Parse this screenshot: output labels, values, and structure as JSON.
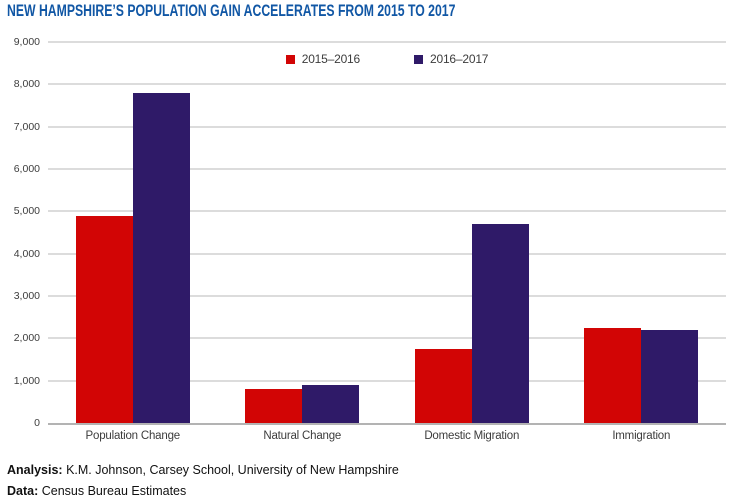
{
  "title": "NEW HAMPSHIRE’S POPULATION GAIN ACCELERATES FROM 2015 TO 2017",
  "footer": {
    "analysis_label": "Analysis:",
    "analysis_text": " K.M. Johnson, Carsey School, University of New Hampshire",
    "data_label": "Data:",
    "data_text": " Census Bureau Estimates"
  },
  "colors": {
    "title_blue": "#1157a5",
    "series_2015_2016_red": "#d20505",
    "series_2016_2017_navy": "#2f1a68",
    "gridline_gray": "#dcdcdc",
    "axis_text_gray": "#3d3d3d"
  },
  "chart_data": {
    "type": "bar",
    "title": "NEW HAMPSHIRE’S POPULATION GAIN ACCELERATES FROM 2015 TO 2017",
    "categories": [
      "Population Change",
      "Natural Change",
      "Domestic Migration",
      "Immigration"
    ],
    "series": [
      {
        "name": "2015–2016",
        "color": "#d20505",
        "values": [
          4900,
          800,
          1750,
          2250
        ]
      },
      {
        "name": "2016–2017",
        "color": "#2f1a68",
        "values": [
          7800,
          900,
          4700,
          2200
        ]
      }
    ],
    "xlabel": "",
    "ylabel": "",
    "ylim": [
      0,
      9000
    ],
    "ytick_step": 1000,
    "ytick_labels": [
      "0",
      "1,000",
      "2,000",
      "3,000",
      "4,000",
      "5,000",
      "6,000",
      "7,000",
      "8,000",
      "9,000"
    ],
    "grid": true,
    "legend_position": "top-center"
  }
}
